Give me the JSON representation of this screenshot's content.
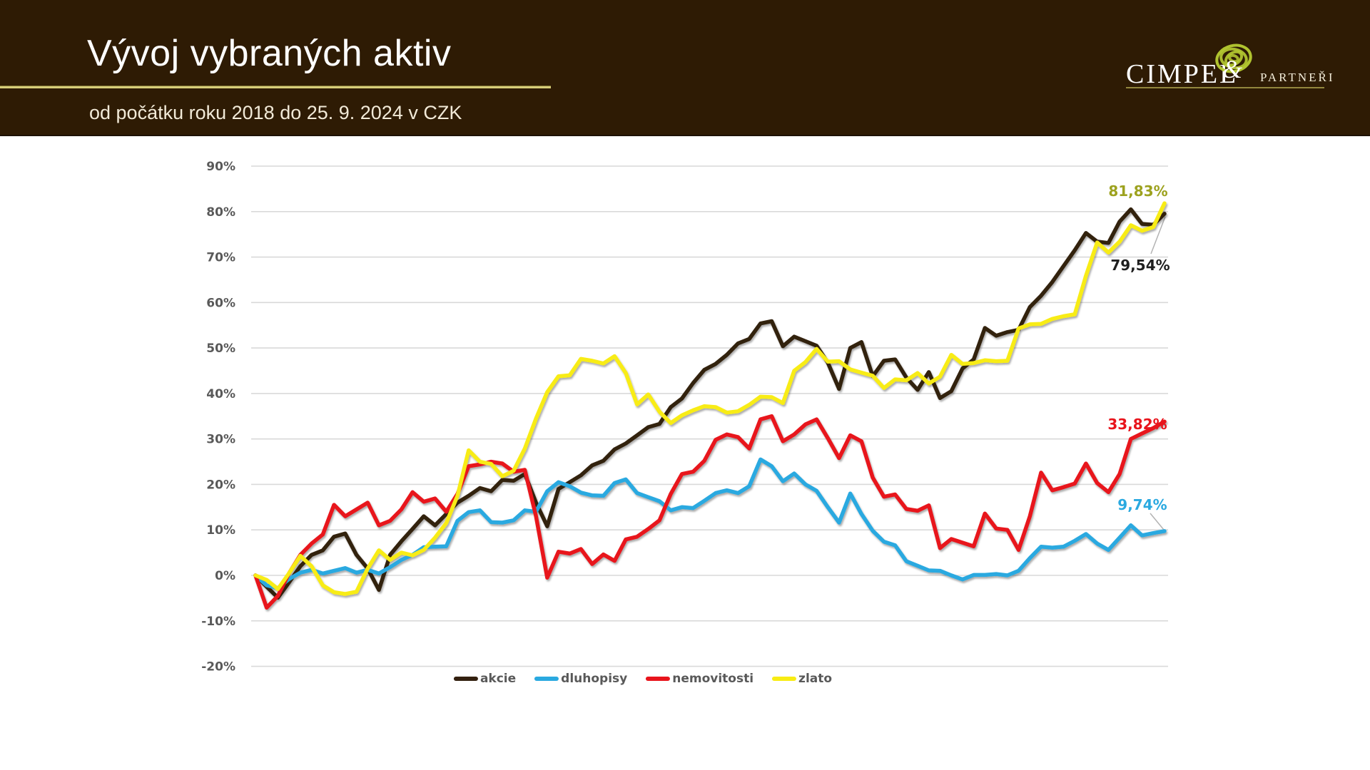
{
  "header": {
    "title": "Vývoj vybraných aktiv",
    "subtitle": "od počátku roku 2018 do 25. 9. 2024 v CZK",
    "logo": {
      "name": "CIMPEL",
      "amp": "&",
      "suffix": "PARTNEŘI"
    }
  },
  "colors": {
    "header_bg": "#2e1b04",
    "title_underline": "#d6cd79",
    "logo_green": "#b7cc32",
    "grid": "#d9d9d9",
    "axis_text": "#595959",
    "leader": "#b3b3b3",
    "akcie": "#33200f",
    "dluhopisy": "#2aa9e0",
    "nemovitosti": "#e8141c",
    "zlato": "#f8ec13"
  },
  "chart_data": {
    "type": "line",
    "title": "Vývoj vybraných aktiv",
    "subtitle": "od počátku roku 2018 do 25. 9. 2024 v CZK",
    "x_range": [
      "2018-01",
      "2024-09-25"
    ],
    "ylim": [
      -20,
      90
    ],
    "grid": true,
    "legend_position": "bottom",
    "y_ticks": [
      "90%",
      "80%",
      "70%",
      "60%",
      "50%",
      "40%",
      "30%",
      "20%",
      "10%",
      "0%",
      "-10%",
      "-20%"
    ],
    "series": [
      {
        "name": "akcie",
        "color": "#33200f",
        "end_label": "79,54%",
        "end_label_color": "#1f1f1f",
        "end_value": 79.54,
        "values": [
          0,
          -2.5,
          -4.9,
          -1.5,
          2,
          4.5,
          5.5,
          8.5,
          9.2,
          4.5,
          1.5,
          -3.2,
          4.5,
          7.5,
          10.2,
          13,
          11,
          13.5,
          16,
          17.5,
          19.2,
          18.5,
          21,
          20.8,
          22.3,
          16,
          10.8,
          19,
          20.5,
          22,
          24.2,
          25.2,
          27.7,
          29,
          30.8,
          32.6,
          33.3,
          37,
          38.9,
          42.3,
          45.2,
          46.5,
          48.5,
          51,
          52,
          55.4,
          55.9,
          50.4,
          52.5,
          51.5,
          50.5,
          46.8,
          41,
          50,
          51.3,
          43.8,
          47.2,
          47.5,
          43.5,
          40.8,
          44.7,
          39,
          40.5,
          45.5,
          47.5,
          54.4,
          52.7,
          53.5,
          54,
          59,
          61.5,
          64.5,
          68,
          71.5,
          75.3,
          73.4,
          73.1,
          77.8,
          80.5,
          77.3,
          77.1,
          79.54
        ]
      },
      {
        "name": "dluhopisy",
        "color": "#2aa9e0",
        "end_label": "9,74%",
        "end_label_color": "#2aa9e0",
        "end_value": 9.74,
        "values": [
          0,
          -2.2,
          -2.8,
          -0.8,
          0.6,
          1.2,
          0.4,
          1,
          1.6,
          0.6,
          1.2,
          0.4,
          1.8,
          3.4,
          4.5,
          6.2,
          6.3,
          6.4,
          12,
          13.9,
          14.3,
          11.7,
          11.6,
          12.1,
          14.3,
          14,
          18.5,
          20.5,
          19.6,
          18.2,
          17.6,
          17.5,
          20.3,
          21.1,
          18.1,
          17.2,
          16.3,
          14.3,
          15,
          14.8,
          16.4,
          18.1,
          18.7,
          18.1,
          19.6,
          25.5,
          24,
          20.7,
          22.4,
          20,
          18.6,
          15,
          11.6,
          18,
          13.5,
          9.8,
          7.4,
          6.6,
          3.1,
          2.1,
          1.1,
          1,
          0,
          -0.9,
          0.1,
          0.1,
          0.3,
          0,
          1,
          3.8,
          6.3,
          6.1,
          6.3,
          7.6,
          9.1,
          7,
          5.6,
          8.3,
          11,
          8.8,
          9.3,
          9.74
        ]
      },
      {
        "name": "nemovitosti",
        "color": "#e8141c",
        "end_label": "33,82%",
        "end_label_color": "#e8141c",
        "end_value": 33.82,
        "values": [
          0,
          -7.1,
          -4.5,
          0.5,
          4.5,
          7,
          9,
          15.5,
          13,
          14.5,
          16,
          11,
          12,
          14.5,
          18.3,
          16.2,
          16.9,
          14,
          17.9,
          24,
          24.4,
          25,
          24.6,
          22.8,
          23.2,
          13,
          -0.5,
          5.2,
          4.8,
          5.8,
          2.5,
          4.6,
          3.2,
          7.9,
          8.5,
          10.2,
          12.1,
          17.9,
          22.3,
          22.8,
          25.2,
          29.8,
          31,
          30.4,
          27.9,
          34.3,
          35,
          29.5,
          31,
          33.2,
          34.3,
          30.2,
          25.8,
          30.8,
          29.5,
          21.5,
          17.3,
          17.8,
          14.6,
          14.2,
          15.4,
          6,
          8,
          7.2,
          6.4,
          13.6,
          10.3,
          10,
          5.6,
          13,
          22.6,
          18.7,
          19.4,
          20.2,
          24.6,
          20.3,
          18.3,
          22.3,
          30,
          31.2,
          32.4,
          33.82
        ]
      },
      {
        "name": "zlato",
        "color": "#f8ec13",
        "end_label": "81,83%",
        "end_label_color": "#9da21f",
        "end_value": 81.83,
        "values": [
          0,
          -1,
          -3,
          0.5,
          4.3,
          2,
          -2.2,
          -3.7,
          -4.1,
          -3.6,
          1.5,
          5.5,
          3.4,
          5,
          4.4,
          5.6,
          8.3,
          11.5,
          17.5,
          27.5,
          25,
          24.5,
          21.8,
          23,
          27.9,
          34.5,
          40.3,
          43.8,
          44,
          47.6,
          47.2,
          46.6,
          48.2,
          44.5,
          37.6,
          39.8,
          36,
          33.5,
          35.2,
          36.3,
          37.2,
          37,
          35.8,
          36.1,
          37.5,
          39.3,
          39.2,
          37.9,
          45,
          46.9,
          49.8,
          47,
          47.1,
          45.3,
          44.6,
          43.9,
          41.2,
          43.1,
          42.9,
          44.5,
          42.2,
          43.7,
          48.5,
          46.5,
          46.7,
          47.3,
          47.1,
          47.2,
          54.3,
          55.2,
          55.3,
          56.4,
          57,
          57.4,
          65.9,
          73.2,
          71,
          73.4,
          77,
          75.8,
          76.6,
          81.83
        ]
      }
    ]
  }
}
